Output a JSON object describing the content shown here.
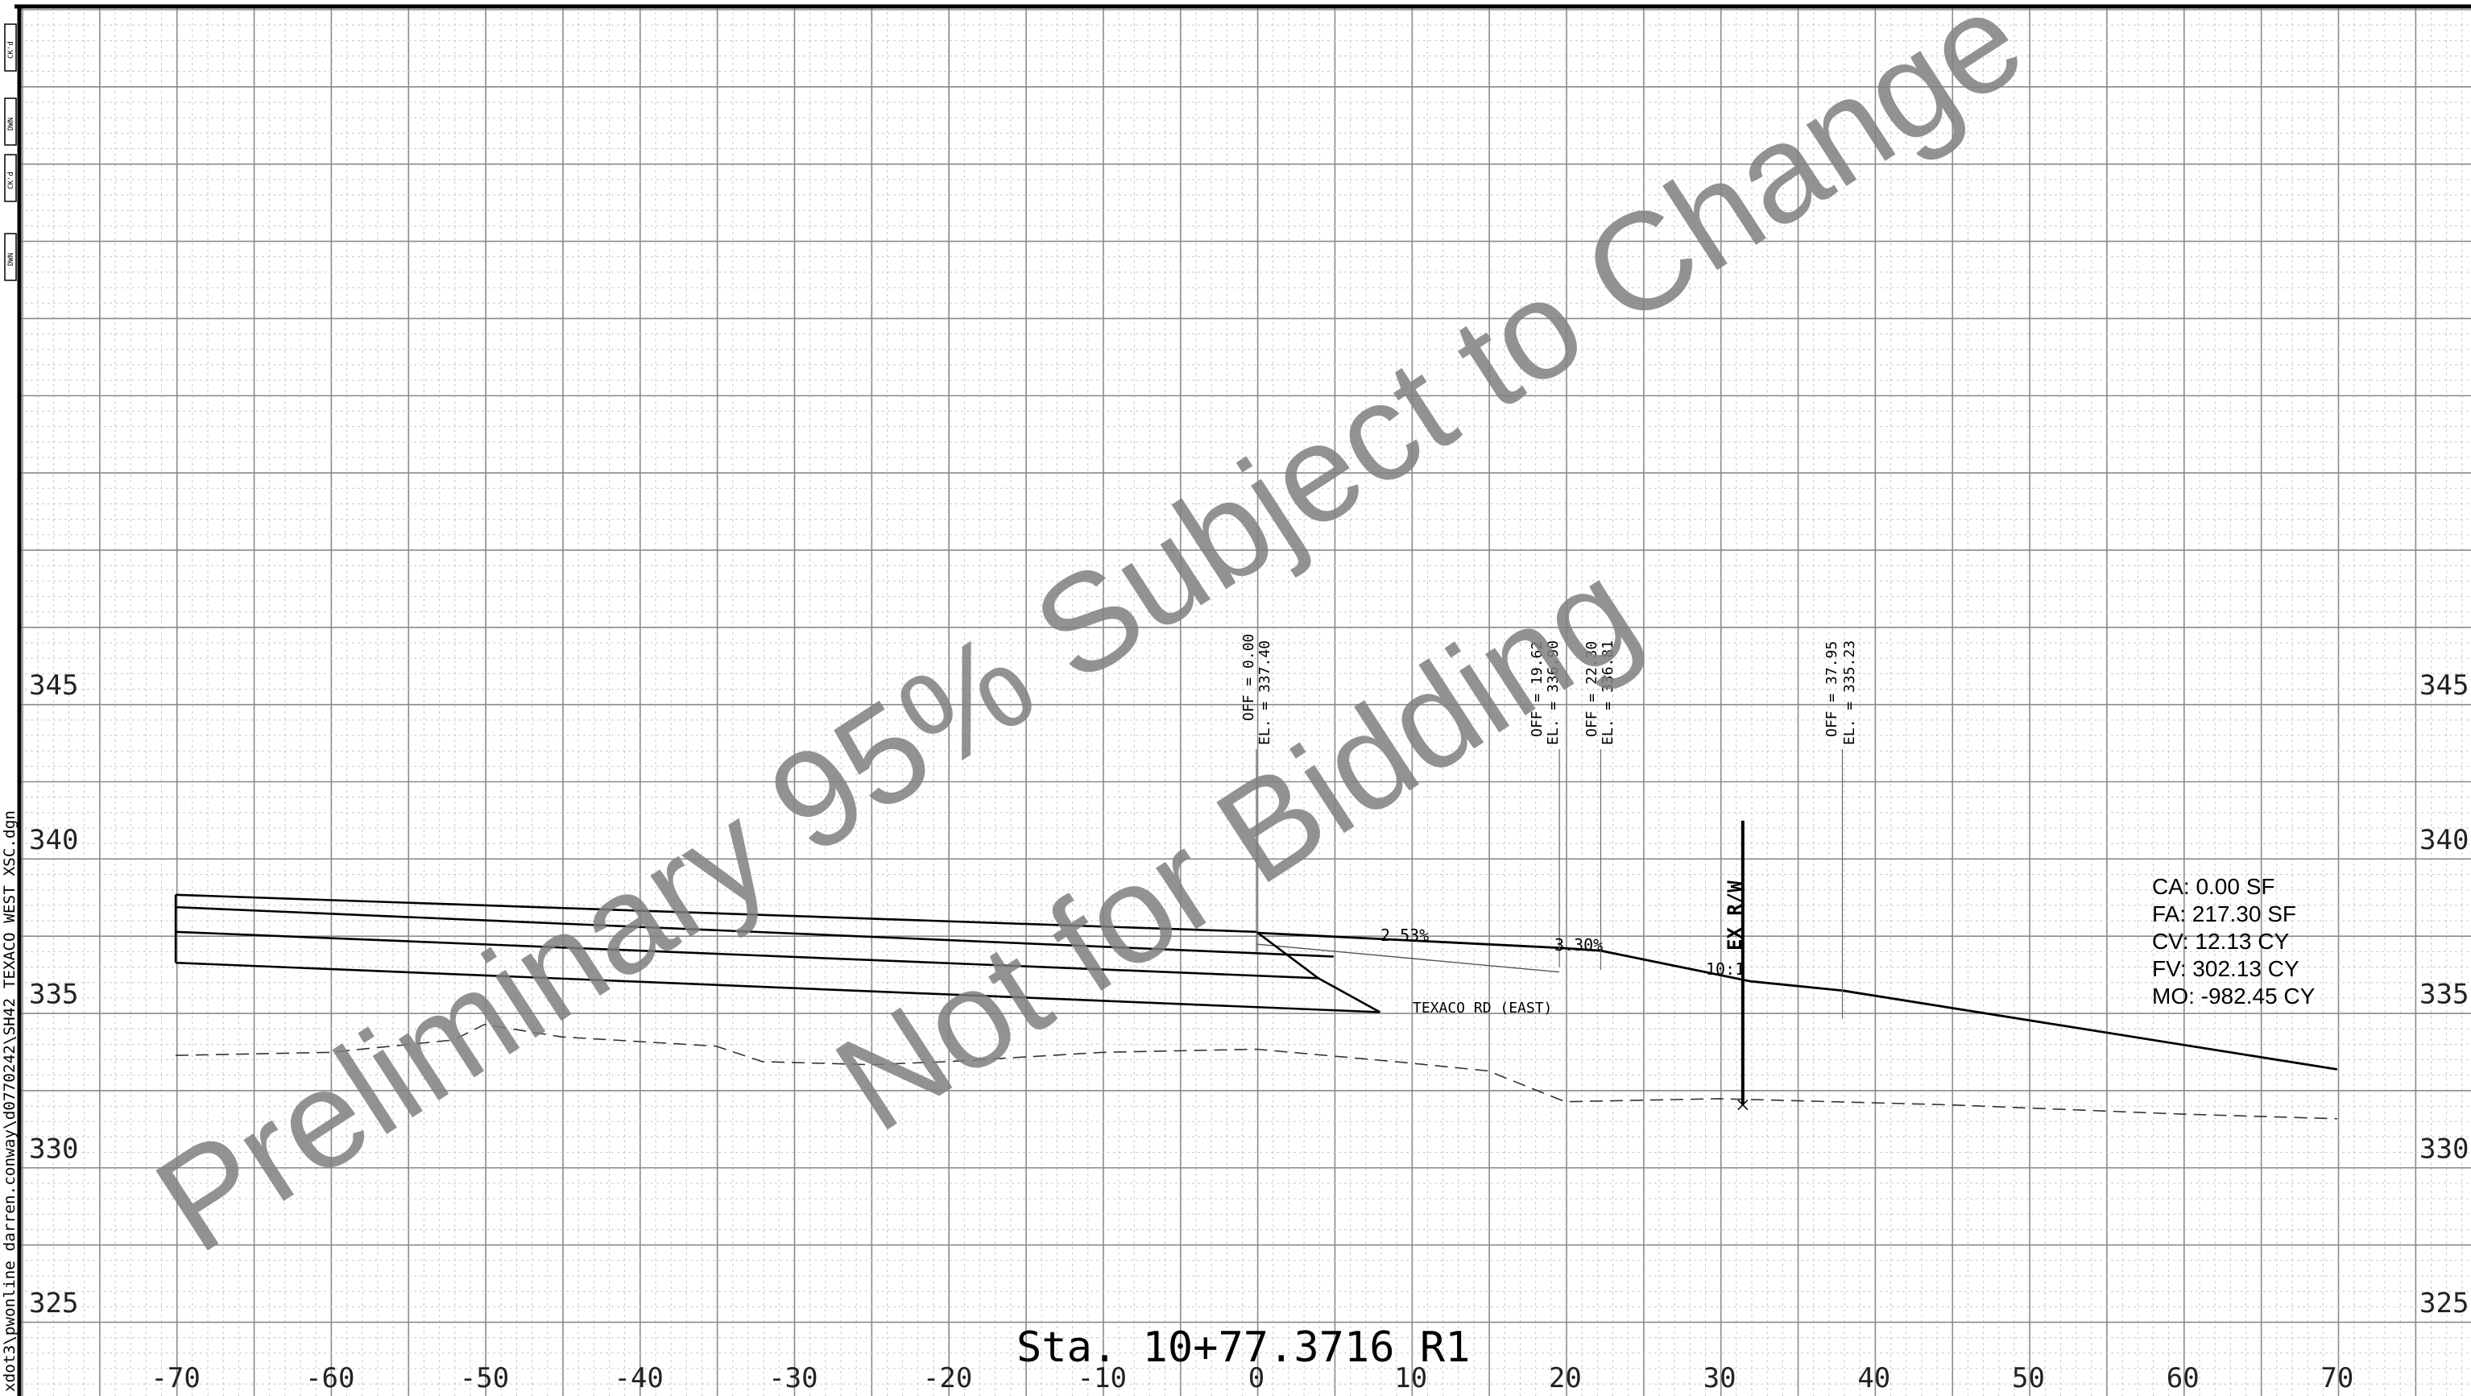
{
  "sidebar": {
    "file_path": "xdot3\\pwonline_darren.conway\\d0770242\\SH42_TEXACO_WEST_XSC.dgn",
    "tabs": [
      "CK'd",
      "DWN",
      "CK'd",
      "DWN"
    ]
  },
  "grid": {
    "x_ticks": [
      -70,
      -60,
      -50,
      -40,
      -30,
      -20,
      -10,
      0,
      10,
      20,
      30,
      40,
      50,
      60,
      70
    ],
    "x_tick_labels": [
      "-70",
      "-60",
      "-50",
      "-40",
      "-30",
      "-20",
      "-10",
      "0",
      "10",
      "20",
      "30",
      "40",
      "50",
      "60",
      "70"
    ],
    "y_ticks": [
      325,
      330,
      335,
      340,
      345
    ],
    "y_tick_labels": [
      "325",
      "330",
      "335",
      "340",
      "345"
    ]
  },
  "annotations": {
    "points": [
      {
        "off_text": "OFF = 0.00",
        "el_text": "EL. = 337.40",
        "offset": 0.0,
        "elevation": 337.4
      },
      {
        "off_text": "OFF = 19.62",
        "el_text": "EL. = 336.90",
        "offset": 19.62,
        "elevation": 336.9
      },
      {
        "off_text": "OFF = 22.30",
        "el_text": "EL. = 336.81",
        "offset": 22.3,
        "elevation": 336.81
      },
      {
        "off_text": "OFF = 37.95",
        "el_text": "EL. = 335.23",
        "offset": 37.95,
        "elevation": 335.23
      }
    ],
    "slope_1": "2.53%",
    "slope_2": "3.30%",
    "slope_3": "10:1",
    "road_label": "TEXACO RD (EAST)",
    "row_label": "EX R/W"
  },
  "profiles": {
    "proposed": [
      [
        0,
        336.97
      ],
      [
        19.62,
        336.48
      ],
      [
        22.3,
        336.39
      ],
      [
        32,
        335.4
      ],
      [
        37.95,
        335.1
      ],
      [
        70,
        332.55
      ]
    ],
    "reference": [
      [
        0,
        336.6
      ],
      [
        19.62,
        335.7
      ]
    ],
    "existing_ground": [
      [
        -70,
        333.0
      ],
      [
        -60,
        333.1
      ],
      [
        -52,
        333.5
      ],
      [
        -50,
        334.0
      ],
      [
        -45,
        333.6
      ],
      [
        -35,
        333.3
      ],
      [
        -32,
        332.8
      ],
      [
        -25,
        332.7
      ],
      [
        -20,
        332.8
      ],
      [
        -10,
        333.1
      ],
      [
        0,
        333.2
      ],
      [
        9,
        332.8
      ],
      [
        15,
        332.5
      ],
      [
        20,
        331.5
      ],
      [
        30,
        331.6
      ],
      [
        45,
        331.4
      ],
      [
        60,
        331.1
      ],
      [
        70,
        330.95
      ]
    ],
    "pavement_lines": [
      {
        "start": [
          -70,
          338.2
        ],
        "end": [
          0,
          337.0
        ]
      },
      {
        "start": [
          -70,
          337.8
        ],
        "end": [
          5,
          336.2
        ]
      },
      {
        "start": [
          -70,
          337.0
        ],
        "end": [
          4,
          335.5
        ]
      },
      {
        "start": [
          -70,
          336.0
        ],
        "end": [
          8,
          334.4
        ]
      }
    ],
    "taper": [
      [
        0,
        337.0
      ],
      [
        4,
        335.5
      ],
      [
        8,
        334.4
      ]
    ],
    "row_offset": 31.5,
    "row_top": 340.6,
    "row_bottom": 331.4
  },
  "summary": {
    "lines": [
      "CA: 0.00 SF",
      "FA: 217.30 SF",
      "CV: 12.13 CY",
      "FV: 302.13 CY",
      "MO: -982.45 CY"
    ]
  },
  "station": "Sta. 10+77.3716 R1",
  "watermark": {
    "line1": "Preliminary 95% Subject to Change",
    "line2": "Not for Bidding"
  }
}
